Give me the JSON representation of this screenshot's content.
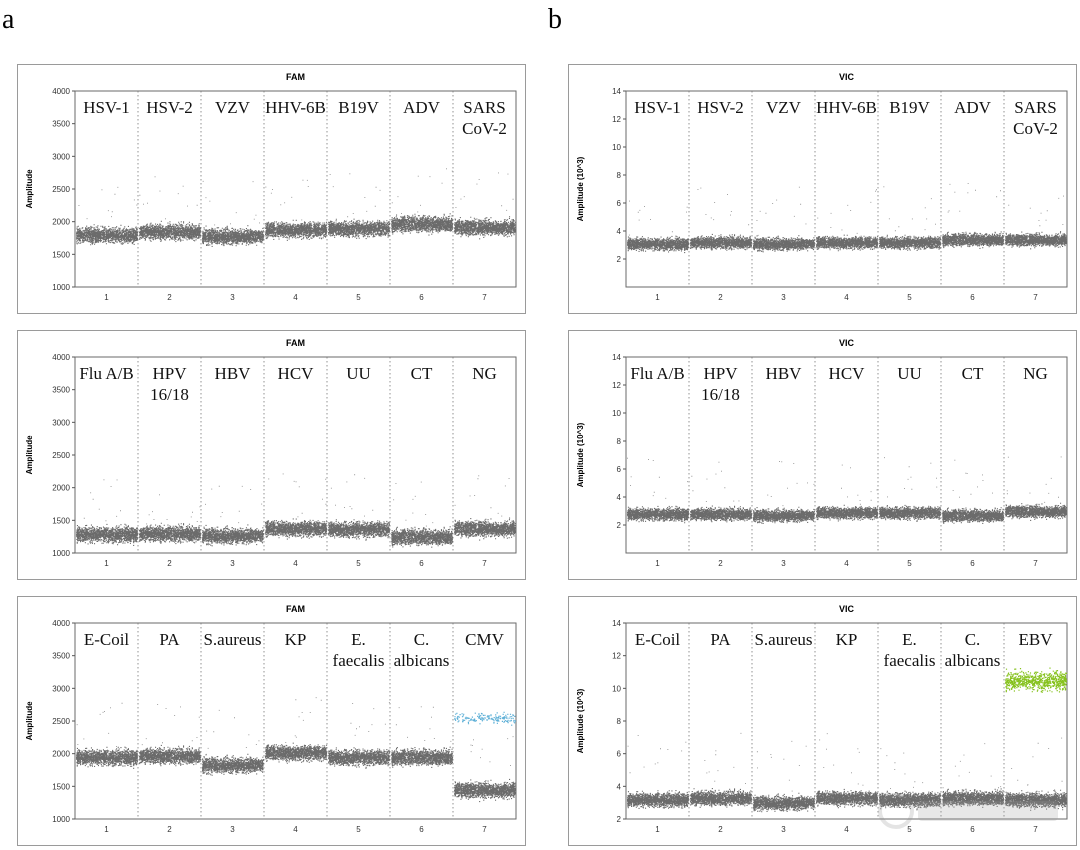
{
  "panel_labels": [
    "a",
    "b"
  ],
  "colors": {
    "droplet": "#6b6b6b",
    "cmv_positive": "#5aaed6",
    "ebv_positive": "#86c21e",
    "divider": "#777777"
  },
  "chart_data": [
    {
      "type": "scatter",
      "panel": "a",
      "title": "FAM",
      "ylabel": "Amplitude",
      "ylim": [
        1000,
        4000
      ],
      "yticks": [
        1000,
        1500,
        2000,
        2500,
        3000,
        3500,
        4000
      ],
      "categories": [
        "1",
        "2",
        "3",
        "4",
        "5",
        "6",
        "7"
      ],
      "well_labels": [
        "HSV-1",
        "HSV-2",
        "VZV",
        "HHV-6B",
        "B19V",
        "ADV",
        "SARS\nCoV-2"
      ],
      "series": [
        {
          "values": [
            1800,
            1850,
            1780,
            1880,
            1900,
            1970,
            1920
          ]
        }
      ]
    },
    {
      "type": "scatter",
      "panel": "b",
      "title": "VIC",
      "ylabel": "Amplitude (10^3)",
      "ylim": [
        0,
        14
      ],
      "yticks": [
        2,
        4,
        6,
        8,
        10,
        12,
        14
      ],
      "categories": [
        "1",
        "2",
        "3",
        "4",
        "5",
        "6",
        "7"
      ],
      "well_labels": [
        "HSV-1",
        "HSV-2",
        "VZV",
        "HHV-6B",
        "B19V",
        "ADV",
        "SARS\nCoV-2"
      ],
      "series": [
        {
          "values": [
            3.1,
            3.2,
            3.1,
            3.2,
            3.2,
            3.4,
            3.4
          ]
        }
      ]
    },
    {
      "type": "scatter",
      "panel": "a",
      "title": "FAM",
      "ylabel": "Amplitude",
      "ylim": [
        1000,
        4000
      ],
      "yticks": [
        1000,
        1500,
        2000,
        2500,
        3000,
        3500,
        4000
      ],
      "categories": [
        "1",
        "2",
        "3",
        "4",
        "5",
        "6",
        "7"
      ],
      "well_labels": [
        "Flu A/B",
        "HPV\n16/18",
        "HBV",
        "HCV",
        "UU",
        "CT",
        "NG"
      ],
      "series": [
        {
          "values": [
            1290,
            1300,
            1270,
            1380,
            1370,
            1250,
            1380
          ]
        }
      ]
    },
    {
      "type": "scatter",
      "panel": "b",
      "title": "VIC",
      "ylabel": "Amplitude (10^3)",
      "ylim": [
        0,
        14
      ],
      "yticks": [
        2,
        4,
        6,
        8,
        10,
        12,
        14
      ],
      "categories": [
        "1",
        "2",
        "3",
        "4",
        "5",
        "6",
        "7"
      ],
      "well_labels": [
        "Flu A/B",
        "HPV\n16/18",
        "HBV",
        "HCV",
        "UU",
        "CT",
        "NG"
      ],
      "series": [
        {
          "values": [
            2.8,
            2.8,
            2.7,
            2.9,
            2.9,
            2.7,
            3.0
          ]
        }
      ]
    },
    {
      "type": "scatter",
      "panel": "a",
      "title": "FAM",
      "ylabel": "Amplitude",
      "ylim": [
        1000,
        4000
      ],
      "yticks": [
        1000,
        1500,
        2000,
        2500,
        3000,
        3500,
        4000
      ],
      "categories": [
        "1",
        "2",
        "3",
        "4",
        "5",
        "6",
        "7"
      ],
      "well_labels": [
        "E-Coil",
        "PA",
        "S.aureus",
        "KP",
        "E.\nfaecalis",
        "C.\nalbicans",
        "CMV"
      ],
      "series": [
        {
          "values": [
            1950,
            1970,
            1830,
            2020,
            1950,
            1950,
            1450
          ]
        }
      ],
      "positive_cluster": {
        "category": "7",
        "value": 2550
      }
    },
    {
      "type": "scatter",
      "panel": "b",
      "title": "VIC",
      "ylabel": "Amplitude (10^3)",
      "ylim": [
        2,
        14
      ],
      "yticks": [
        2,
        4,
        6,
        8,
        10,
        12,
        14
      ],
      "categories": [
        "1",
        "2",
        "3",
        "4",
        "5",
        "6",
        "7"
      ],
      "well_labels": [
        "E-Coil",
        "PA",
        "S.aureus",
        "KP",
        "E.\nfaecalis",
        "C.\nalbicans",
        "EBV"
      ],
      "series": [
        {
          "values": [
            3.2,
            3.3,
            3.0,
            3.3,
            3.2,
            3.3,
            3.2
          ]
        }
      ],
      "positive_cluster": {
        "category": "7",
        "value": 10.5
      }
    }
  ]
}
